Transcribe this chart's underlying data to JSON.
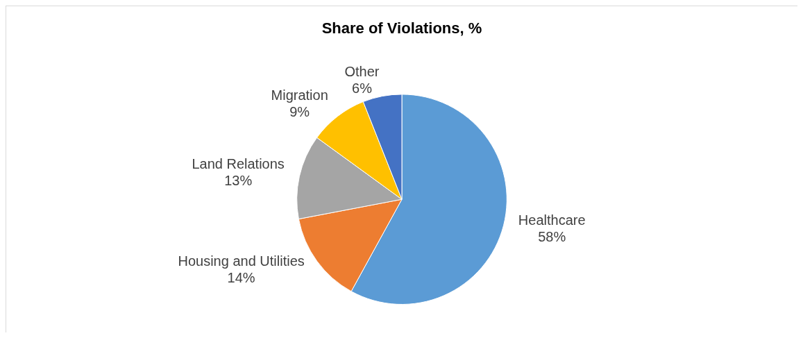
{
  "chart_data": {
    "type": "pie",
    "title": "Share of Violations, %",
    "categories": [
      "Healthcare",
      "Housing and Utilities",
      "Land Relations",
      "Migration",
      "Other"
    ],
    "values": [
      58,
      14,
      13,
      9,
      6
    ],
    "value_labels": [
      "58%",
      "14%",
      "13%",
      "9%",
      "6%"
    ],
    "colors": [
      "#5b9bd5",
      "#ed7d31",
      "#a5a5a5",
      "#ffc000",
      "#4472c4"
    ],
    "legend": false
  }
}
